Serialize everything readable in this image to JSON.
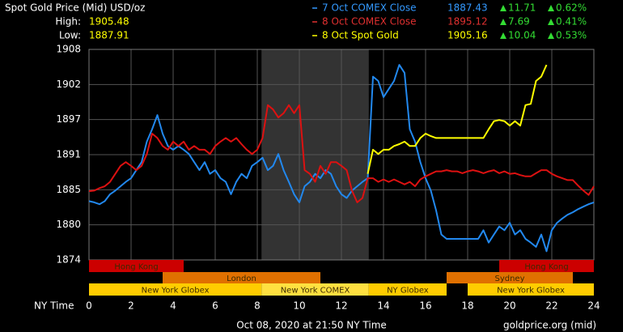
{
  "chart_data": {
    "type": "line",
    "title": "Spot Gold Price (Mid) USD/oz",
    "high_label": "High:",
    "high": 1905.48,
    "low_label": "Low:",
    "low": 1887.91,
    "xlabel": "NY Time",
    "footer": "Oct 08, 2020 at 21:50 NY Time",
    "source": "goldprice.org (mid)",
    "xlim": [
      0,
      24
    ],
    "xticks": [
      0,
      2,
      4,
      6,
      8,
      10,
      12,
      14,
      16,
      18,
      20,
      22,
      24
    ],
    "ylim": [
      1874,
      1908
    ],
    "yticks": [
      1874,
      {
        "value": 1879.67,
        "label": "1880"
      },
      {
        "value": 1885.33,
        "label": "1885"
      },
      1891,
      {
        "value": 1896.67,
        "label": "1897"
      },
      {
        "value": 1902.33,
        "label": "1902"
      },
      1908
    ],
    "grid": true,
    "x": [
      0,
      0.25,
      0.5,
      0.75,
      1,
      1.25,
      1.5,
      1.75,
      2,
      2.25,
      2.5,
      2.75,
      3,
      3.25,
      3.5,
      3.75,
      4,
      4.25,
      4.5,
      4.75,
      5,
      5.25,
      5.5,
      5.75,
      6,
      6.25,
      6.5,
      6.75,
      7,
      7.25,
      7.5,
      7.75,
      8,
      8.25,
      8.5,
      8.75,
      9,
      9.25,
      9.5,
      9.75,
      10,
      10.25,
      10.5,
      10.75,
      11,
      11.25,
      11.5,
      11.75,
      12,
      12.25,
      12.5,
      12.75,
      13,
      13.25,
      13.5,
      13.75,
      14,
      14.25,
      14.5,
      14.75,
      15,
      15.25,
      15.5,
      15.75,
      16,
      16.25,
      16.5,
      16.75,
      17,
      17.25,
      17.5,
      17.75,
      18,
      18.25,
      18.5,
      18.75,
      19,
      19.25,
      19.5,
      19.75,
      20,
      20.25,
      20.5,
      20.75,
      21,
      21.25,
      21.5,
      21.75,
      22,
      22.25,
      22.5,
      22.75,
      23,
      23.25,
      23.5,
      23.75,
      24
    ],
    "series": [
      {
        "name": "7 Oct COMEX Close",
        "color": "#2288ee",
        "text_color": "#3399ff",
        "price": 1887.43,
        "change": 11.71,
        "change_pct": "0.62%",
        "values": [
          1883.5,
          1883.3,
          1883.0,
          1883.5,
          1884.6,
          1885.2,
          1885.9,
          1886.6,
          1887.2,
          1888.5,
          1889.8,
          1893.1,
          1895.1,
          1897.4,
          1894.4,
          1892.4,
          1891.8,
          1892.4,
          1891.8,
          1891.1,
          1889.8,
          1888.5,
          1889.8,
          1887.9,
          1888.5,
          1887.2,
          1886.6,
          1884.6,
          1886.6,
          1887.9,
          1887.2,
          1889.2,
          1889.8,
          1890.5,
          1888.5,
          1889.2,
          1891.1,
          1888.5,
          1886.6,
          1884.6,
          1883.3,
          1885.9,
          1886.6,
          1887.9,
          1887.2,
          1888.5,
          1887.9,
          1885.9,
          1884.6,
          1884.0,
          1885.2,
          1885.9,
          1886.6,
          1887.2,
          1903.6,
          1902.9,
          1900.3,
          1901.6,
          1902.9,
          1905.5,
          1904.2,
          1895.1,
          1893.1,
          1889.8,
          1887.2,
          1885.2,
          1882.0,
          1878.1,
          1877.4,
          1877.4,
          1877.4,
          1877.4,
          1877.4,
          1877.4,
          1877.4,
          1878.8,
          1876.8,
          1878.1,
          1879.4,
          1878.8,
          1880.0,
          1878.1,
          1878.8,
          1877.4,
          1876.8,
          1876.1,
          1878.1,
          1875.4,
          1878.8,
          1880.0,
          1880.7,
          1881.3,
          1881.7,
          1882.2,
          1882.6,
          1883.0,
          1883.3
        ]
      },
      {
        "name": "8 Oct COMEX Close",
        "color": "#dd1111",
        "text_color": "#e03030",
        "price": 1895.12,
        "change": 7.69,
        "change_pct": "0.41%",
        "values": [
          1885.1,
          1885.2,
          1885.6,
          1885.9,
          1886.6,
          1887.9,
          1889.2,
          1889.8,
          1889.2,
          1888.5,
          1889.2,
          1891.1,
          1894.4,
          1893.7,
          1892.4,
          1891.8,
          1893.1,
          1892.4,
          1893.1,
          1891.8,
          1892.4,
          1891.8,
          1891.8,
          1891.1,
          1892.4,
          1893.1,
          1893.7,
          1893.1,
          1893.7,
          1892.7,
          1891.8,
          1891.1,
          1891.8,
          1893.7,
          1899.0,
          1898.3,
          1897.0,
          1897.7,
          1899.0,
          1897.7,
          1899.0,
          1888.5,
          1887.9,
          1886.6,
          1889.2,
          1887.9,
          1889.8,
          1889.8,
          1889.2,
          1888.5,
          1885.2,
          1883.3,
          1884.0,
          1887.2,
          1887.2,
          1886.6,
          1887.0,
          1886.6,
          1887.0,
          1886.6,
          1886.2,
          1886.6,
          1885.9,
          1887.0,
          1887.5,
          1887.9,
          1888.3,
          1888.3,
          1888.5,
          1888.3,
          1888.3,
          1888.0,
          1888.3,
          1888.5,
          1888.3,
          1888.0,
          1888.3,
          1888.5,
          1888.0,
          1888.3,
          1887.9,
          1888.0,
          1887.7,
          1887.5,
          1887.5,
          1888.0,
          1888.5,
          1888.5,
          1887.9,
          1887.5,
          1887.2,
          1886.9,
          1886.9,
          1886.0,
          1885.2,
          1884.5,
          1885.9
        ]
      },
      {
        "name": "8 Oct Spot Gold",
        "color": "#ffff00",
        "text_color": "#ffff00",
        "price": 1905.16,
        "change": 10.04,
        "change_pct": "0.53%",
        "values": [
          null,
          null,
          null,
          null,
          null,
          null,
          null,
          null,
          null,
          null,
          null,
          null,
          null,
          null,
          null,
          null,
          null,
          null,
          null,
          null,
          null,
          null,
          null,
          null,
          null,
          null,
          null,
          null,
          null,
          null,
          null,
          null,
          null,
          null,
          null,
          null,
          null,
          null,
          null,
          null,
          null,
          null,
          null,
          null,
          null,
          null,
          null,
          null,
          null,
          null,
          null,
          null,
          null,
          1887.9,
          1891.8,
          1891.1,
          1891.8,
          1891.8,
          1892.4,
          1892.7,
          1893.1,
          1892.4,
          1892.4,
          1893.7,
          1894.4,
          1894.0,
          1893.7,
          1893.7,
          1893.7,
          1893.7,
          1893.7,
          1893.7,
          1893.7,
          1893.7,
          1893.7,
          1893.7,
          1895.1,
          1896.4,
          1896.6,
          1896.4,
          1895.7,
          1896.4,
          1895.7,
          1899.0,
          1899.2,
          1902.9,
          1903.6,
          1905.5,
          null,
          null,
          null,
          null,
          null,
          null,
          null,
          null,
          null
        ]
      }
    ],
    "sessions": [
      {
        "name": "Hong Kong",
        "start": 0,
        "end": 4.5,
        "row": 0,
        "color": "#cc0000"
      },
      {
        "name": "Hong Kong",
        "start": 19.5,
        "end": 24,
        "row": 0,
        "color": "#cc0000"
      },
      {
        "name": "London",
        "start": 3.5,
        "end": 11,
        "row": 1,
        "color": "#e07000"
      },
      {
        "name": "Sydney",
        "start": 17,
        "end": 23,
        "row": 1,
        "color": "#e07000"
      },
      {
        "name": "New York Globex",
        "start": 0,
        "end": 8.2,
        "row": 2,
        "color": "#ffcc00"
      },
      {
        "name": "New York COMEX",
        "start": 8.2,
        "end": 13.3,
        "row": 2,
        "color": "#ffe040",
        "shade": true
      },
      {
        "name": "NY Globex",
        "start": 13.3,
        "end": 17,
        "row": 2,
        "color": "#ffcc00"
      },
      {
        "name": "New York Globex",
        "start": 18,
        "end": 24,
        "row": 2,
        "color": "#ffcc00"
      }
    ]
  }
}
